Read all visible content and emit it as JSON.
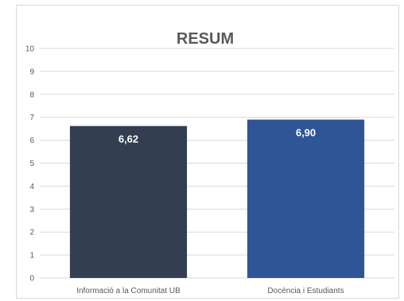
{
  "chart_data": {
    "type": "bar",
    "title": "RESUM",
    "categories": [
      "Informació a la Comunitat UB",
      "Docència i Estudiants"
    ],
    "values": [
      6.62,
      6.9
    ],
    "data_labels": [
      "6,62",
      "6,90"
    ],
    "bar_colors": [
      "#333f50",
      "#2f5597"
    ],
    "ylim": [
      0,
      10
    ],
    "yticks": [
      0,
      1,
      2,
      3,
      4,
      5,
      6,
      7,
      8,
      9,
      10
    ],
    "grid": true,
    "legend": "none",
    "xlabel": "",
    "ylabel": ""
  }
}
